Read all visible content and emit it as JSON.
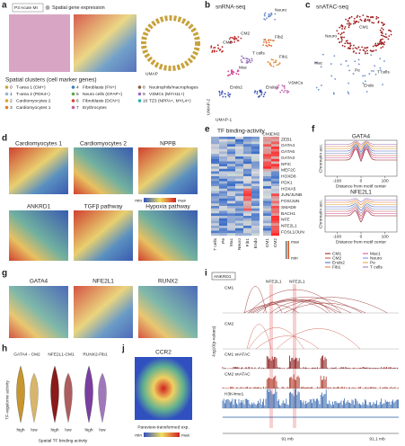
{
  "a": {
    "label": "a",
    "sample": "P3 Acute MI",
    "subtitle": "Spatial gene expression",
    "umap": "UMAP",
    "legend_title": "Spatial clusters (cell marker genes)",
    "clusters": [
      {
        "id": 0,
        "name": "T-area 1 (CM+)",
        "color": "#c8a23c"
      },
      {
        "id": 1,
        "name": "T-area 2 (PDK4+)",
        "color": "#8fb7d9"
      },
      {
        "id": 2,
        "name": "Cardiomyocytes 2",
        "color": "#e0a030"
      },
      {
        "id": 3,
        "name": "Cardiomyocytes 1",
        "color": "#e07b2a"
      },
      {
        "id": 4,
        "name": "Fibroblasts (FN+)",
        "color": "#3d7fc1"
      },
      {
        "id": 5,
        "name": "Neuro cells (GFAP+)",
        "color": "#5aa84b"
      },
      {
        "id": 6,
        "name": "Fibroblasts (DCN+)",
        "color": "#d9433a"
      },
      {
        "id": 7,
        "name": "Erythrocytes",
        "color": "#c65fa0"
      },
      {
        "id": 8,
        "name": "Neutrophils/macrophages",
        "color": "#8a5a3a"
      },
      {
        "id": 9,
        "name": "VSMCs (MYH11+)",
        "color": "#9a6fc2"
      },
      {
        "id": 10,
        "name": "TZ3 (NPPA+, MYL4+)",
        "color": "#2ab0b0"
      }
    ]
  },
  "b": {
    "label": "b",
    "title": "snRNA-seq",
    "groups": [
      {
        "name": "Neuro",
        "color": "#6e8fd0"
      },
      {
        "name": "CM2",
        "color": "#c03030"
      },
      {
        "name": "CM1",
        "color": "#b82020"
      },
      {
        "name": "Fib2",
        "color": "#e07030"
      },
      {
        "name": "T cells",
        "color": "#9a70c0"
      },
      {
        "name": "Fib1",
        "color": "#e09040"
      },
      {
        "name": "Mac",
        "color": "#d04a90"
      },
      {
        "name": "Endo2",
        "color": "#4a60c0"
      },
      {
        "name": "Endo1",
        "color": "#3a50b0"
      },
      {
        "name": "VSMCs",
        "color": "#c060b0"
      }
    ],
    "xlabel": "UMAP-1",
    "ylabel": "UMAP-2"
  },
  "c": {
    "label": "c",
    "title": "snATAC-seq",
    "groups": [
      "CM1",
      "Neuro",
      "Pe",
      "T cells",
      "Endo",
      "Mac"
    ]
  },
  "d": {
    "label": "d",
    "panels": [
      "Cardiomyocytes 1",
      "Cardiomyocytes 2",
      "NPPB",
      "ANKRD1",
      "TGFβ pathway",
      "Hypoxia pathway"
    ],
    "min": "min",
    "max": "max"
  },
  "e": {
    "label": "e",
    "title": "TF binding-activity",
    "cols_top": [
      "CM1",
      "CM2"
    ],
    "genes": [
      "ZEB1",
      "GATA4",
      "GATA6",
      "GATA3",
      "NFIC",
      "MEF2C",
      "HOXD8",
      "PDX1",
      "HOXA5",
      "JUN/JUNB",
      "FOS/JUN",
      "SMAD9",
      "BACH1",
      "NFE",
      "NFE2L1",
      "FOSL1/JUN"
    ],
    "columns": [
      "T cells",
      "Pe",
      "Mac",
      "Neuro",
      "Fib1",
      "Endo",
      "CM1",
      "CM2"
    ],
    "max": "max",
    "min": "min"
  },
  "f": {
    "label": "f",
    "plots": [
      "GATA4",
      "NFE2L1"
    ],
    "ylabel": "Chromatin acc.",
    "xlabel": "Distance from motif center",
    "xticks": [
      -100,
      0,
      100
    ],
    "xlim": [
      -150,
      150
    ],
    "legend": [
      {
        "name": "CM1",
        "color": "#8b1a1a"
      },
      {
        "name": "Mac1",
        "color": "#d04a90"
      },
      {
        "name": "CM2",
        "color": "#c84a3a"
      },
      {
        "name": "Neuro",
        "color": "#6e8fd0"
      },
      {
        "name": "Endo2",
        "color": "#4a60c0"
      },
      {
        "name": "Pe",
        "color": "#e0a030"
      },
      {
        "name": "Fib1",
        "color": "#e07030"
      },
      {
        "name": "T cells",
        "color": "#9a70c0"
      }
    ]
  },
  "g": {
    "label": "g",
    "panels": [
      "GATA4",
      "NFE2L1",
      "RUNX2"
    ]
  },
  "h": {
    "label": "h",
    "panels": [
      {
        "title": "GATA4 - CM2",
        "color": "#c8962e"
      },
      {
        "title": "NFE2L1-CM1",
        "color": "#8b1a1a"
      },
      {
        "title": "RUNX2-Fib1",
        "color": "#7a3ea0"
      }
    ],
    "ylabel": "TF-regulome activity",
    "high": "high",
    "low": "low",
    "xlabel": "Spatial TF binding activity"
  },
  "i": {
    "label": "i",
    "gene": "ANKRD1",
    "tracks": [
      "CM1",
      "CM2",
      "CM1 snATAC",
      "CM2 snATAC",
      "H3K4me1"
    ],
    "ylabel": "-log10(p-values)",
    "motif": "NFE2L1",
    "pos1": "91 mb",
    "pos2": "91.1 mb"
  },
  "j": {
    "label": "j",
    "title": "CCR2",
    "xlabel": "Paraview-transformed exp.",
    "min": "min",
    "max": "max"
  }
}
